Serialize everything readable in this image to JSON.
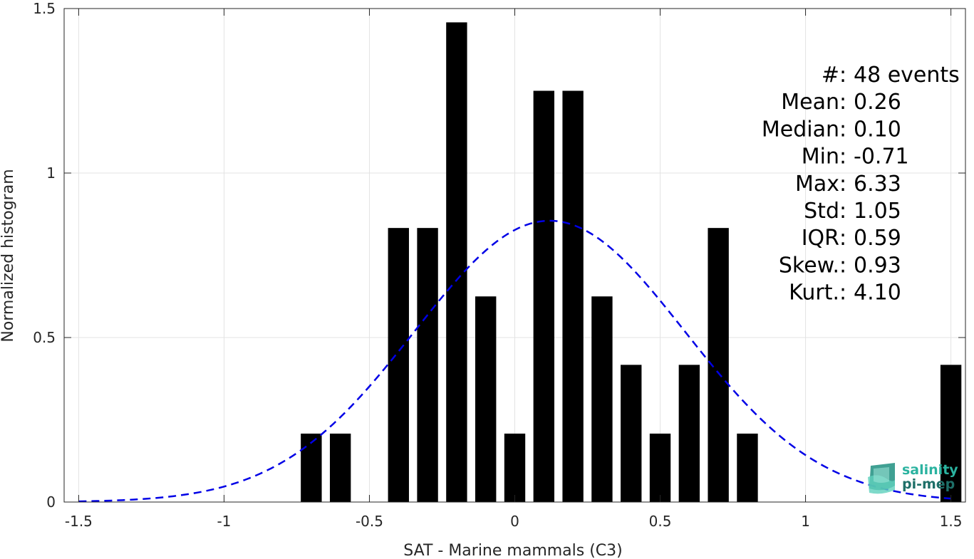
{
  "chart_data": {
    "type": "bar",
    "xlabel": "SAT - Marine mammals (C3)",
    "ylabel": "Normalized histogram",
    "xlim": [
      -1.55,
      1.55
    ],
    "ylim": [
      0,
      1.5
    ],
    "xticks": [
      "-1.5",
      "-1",
      "-0.5",
      "0",
      "0.5",
      "1",
      "1.5"
    ],
    "xtick_values": [
      -1.5,
      -1,
      -0.5,
      0,
      0.5,
      1,
      1.5
    ],
    "yticks": [
      "0",
      "0.5",
      "1",
      "1.5"
    ],
    "ytick_values": [
      0,
      0.5,
      1,
      1.5
    ],
    "grid": true,
    "bin_width": 0.1,
    "bars": [
      {
        "x": -0.7,
        "y": 0.208
      },
      {
        "x": -0.6,
        "y": 0.208
      },
      {
        "x": -0.4,
        "y": 0.833
      },
      {
        "x": -0.3,
        "y": 0.833
      },
      {
        "x": -0.2,
        "y": 1.458
      },
      {
        "x": -0.1,
        "y": 0.625
      },
      {
        "x": 0.0,
        "y": 0.208
      },
      {
        "x": 0.1,
        "y": 1.25
      },
      {
        "x": 0.2,
        "y": 1.25
      },
      {
        "x": 0.3,
        "y": 0.625
      },
      {
        "x": 0.4,
        "y": 0.417
      },
      {
        "x": 0.5,
        "y": 0.208
      },
      {
        "x": 0.6,
        "y": 0.417
      },
      {
        "x": 0.7,
        "y": 0.833
      },
      {
        "x": 0.8,
        "y": 0.208
      },
      {
        "x": 1.5,
        "y": 0.417
      }
    ],
    "fit_curve": {
      "style": "dashed",
      "color": "#0000e6",
      "mean": 0.12,
      "sigma": 0.465,
      "peak": 0.855
    },
    "stats": [
      {
        "label": "#  ",
        "value": "48 events"
      },
      {
        "label": "Mean ",
        "value": "0.26"
      },
      {
        "label": "Median ",
        "value": "0.10"
      },
      {
        "label": "Min ",
        "value": "-0.71"
      },
      {
        "label": "Max ",
        "value": "6.33"
      },
      {
        "label": "Std ",
        "value": "1.05"
      },
      {
        "label": "IQR ",
        "value": "0.59"
      },
      {
        "label": "Skew. ",
        "value": "0.93"
      },
      {
        "label": "Kurt. ",
        "value": "4.10"
      }
    ]
  },
  "logo": {
    "line1": "salinity",
    "line2": "pi-mep",
    "color_primary": "#2bb3a0",
    "color_dark": "#1e6f68"
  },
  "colors": {
    "bar": "#000000",
    "grid": "#e3e3e3",
    "axis": "#262626"
  }
}
